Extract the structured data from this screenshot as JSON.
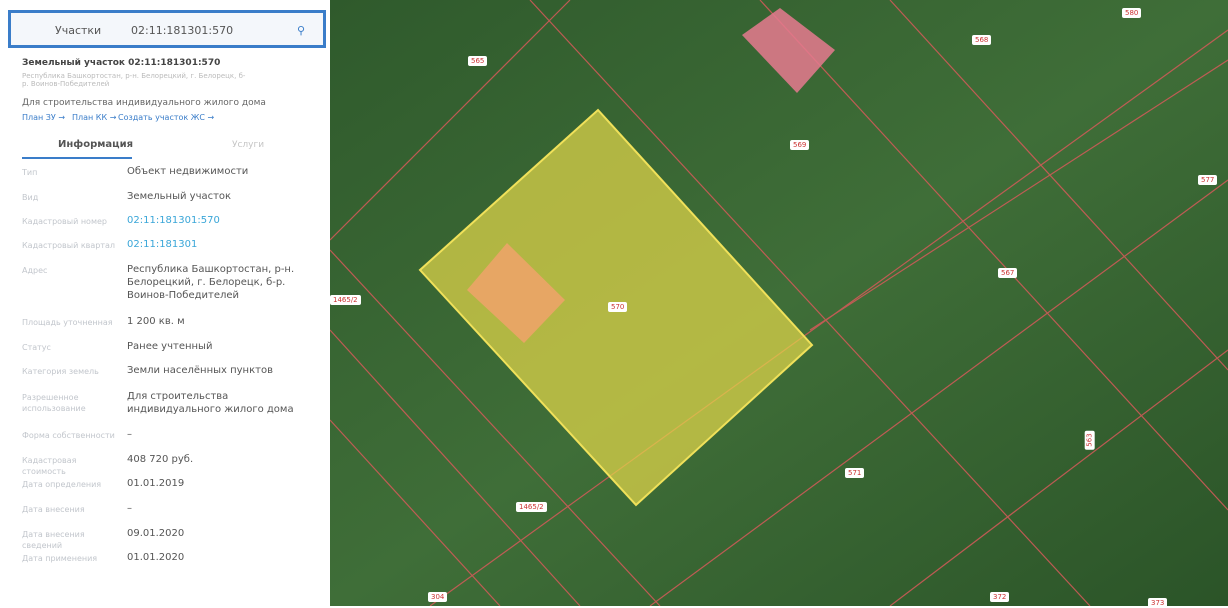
{
  "search": {
    "layer": "Участки",
    "query": "02:11:181301:570"
  },
  "header": {
    "title": "Земельный участок 02:11:181301:570",
    "subtitle": "Республика Башкортостан, р-н. Белорецкий, г. Белорецк, б-р. Воинов-Победителей",
    "purpose": "Для строительства индивидуального жилого дома",
    "links": [
      "План ЗУ →",
      "План КК →",
      "Создать участок ЖС →"
    ]
  },
  "tabs": [
    "Информация",
    "Услуги"
  ],
  "info": {
    "rows": [
      {
        "label": "Тип",
        "value": "Объект недвижимости"
      },
      {
        "label": "Вид",
        "value": "Земельный участок"
      },
      {
        "label": "Кадастровый номер",
        "value": "02:11:181301:570"
      },
      {
        "label": "Кадастровый квартал",
        "value": "02:11:181301"
      },
      {
        "label": "Адрес",
        "value": "Республика Башкортостан, р-н. Белорецкий, г. Белорецк, б-р. Воинов-Победителей"
      },
      {
        "label": "Площадь уточненная",
        "value": "1 200 кв. м"
      },
      {
        "label": "Статус",
        "value": "Ранее учтенный"
      },
      {
        "label": "Категория земель",
        "value": "Земли населённых пунктов"
      },
      {
        "label": "Разрешенное использование",
        "value": "Для строительства индивидуального жилого дома"
      },
      {
        "label": "Форма собственности",
        "value": "–"
      },
      {
        "label": "Кадастровая стоимость",
        "value": "408 720 руб."
      },
      {
        "label": "Дата определения",
        "value": "01.01.2019"
      },
      {
        "label": "Дата внесения",
        "value": "–"
      },
      {
        "label": "Дата внесения сведений",
        "value": "09.01.2020"
      },
      {
        "label": "Дата применения",
        "value": "01.01.2020"
      }
    ]
  },
  "map": {
    "labels": [
      "580",
      "568",
      "565",
      "569",
      "577",
      "567",
      "1465/2",
      "570",
      "571",
      "1465/2",
      "563",
      "304",
      "372",
      "373"
    ]
  }
}
